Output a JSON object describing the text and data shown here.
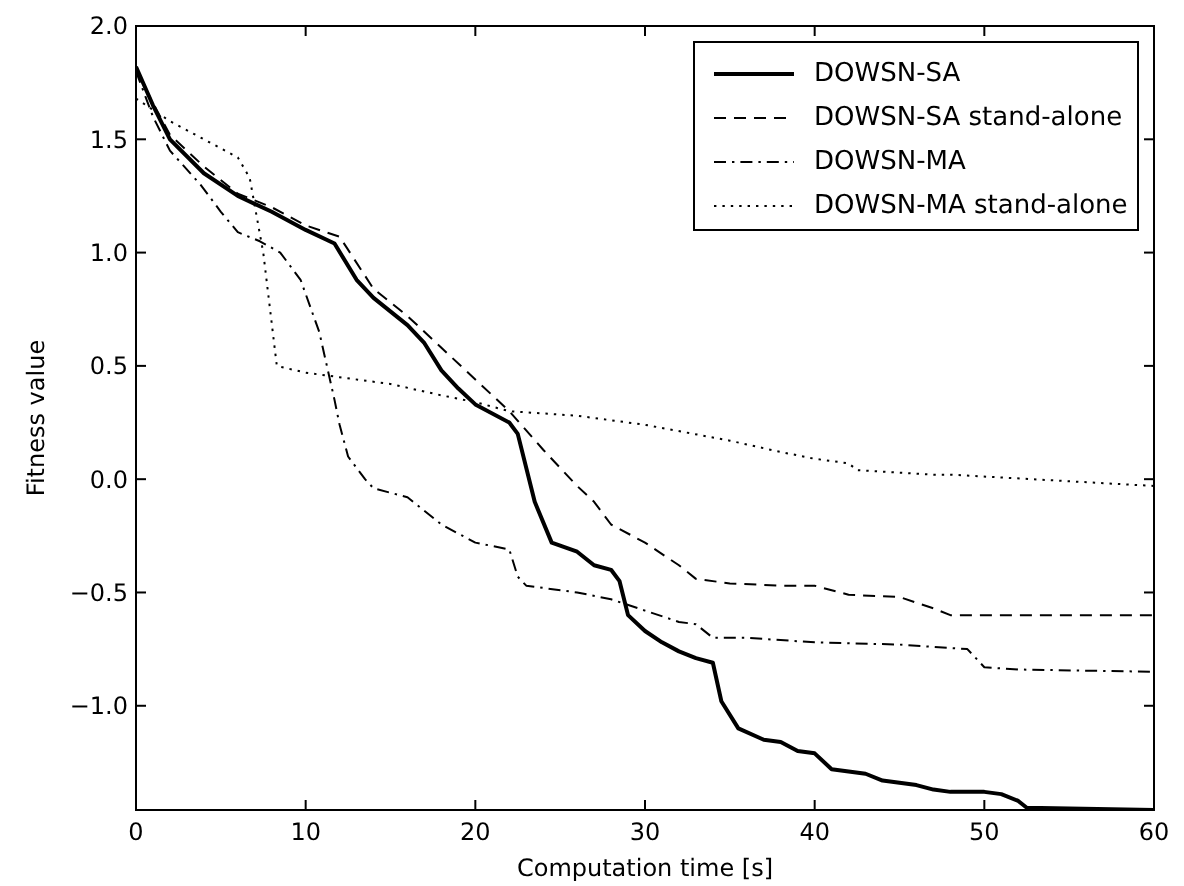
{
  "chart_data": {
    "type": "line",
    "xlabel": "Computation time [s]",
    "ylabel": "Fitness value",
    "xlim": [
      0,
      60
    ],
    "ylim": [
      -1.46,
      2.0
    ],
    "xticks": [
      0,
      10,
      20,
      30,
      40,
      50,
      60
    ],
    "yticks": [
      {
        "value": 2,
        "label": "2.0"
      },
      {
        "value": 1.5,
        "label": "1.5"
      },
      {
        "value": 1,
        "label": "1.0"
      },
      {
        "value": 0.5,
        "label": "0.5"
      },
      {
        "value": 0,
        "label": "0.0"
      },
      {
        "value": -0.5,
        "label": "−0.5"
      },
      {
        "value": -1,
        "label": "−1.0"
      }
    ],
    "grid": false,
    "legend": "top right",
    "series": [
      {
        "name": "DOWSN-SA",
        "color": "#000000",
        "line_style": "solid",
        "x": [
          0,
          1,
          2,
          4,
          6,
          8,
          10,
          11.7,
          13,
          14,
          16,
          17,
          18,
          19,
          20,
          22,
          22.5,
          23.5,
          24.5,
          26,
          27,
          28,
          28.5,
          29,
          30,
          31,
          32,
          33,
          34,
          34.5,
          35.5,
          37,
          38,
          39,
          40,
          41,
          42,
          43,
          44,
          45,
          46,
          47,
          48,
          50,
          51,
          52,
          52.5,
          60
        ],
        "values": [
          1.82,
          1.65,
          1.5,
          1.35,
          1.25,
          1.18,
          1.1,
          1.04,
          0.88,
          0.8,
          0.68,
          0.6,
          0.48,
          0.4,
          0.33,
          0.25,
          0.2,
          -0.1,
          -0.28,
          -0.32,
          -0.38,
          -0.4,
          -0.45,
          -0.6,
          -0.67,
          -0.72,
          -0.76,
          -0.79,
          -0.81,
          -0.98,
          -1.1,
          -1.15,
          -1.16,
          -1.2,
          -1.21,
          -1.28,
          -1.29,
          -1.3,
          -1.33,
          -1.34,
          -1.35,
          -1.37,
          -1.38,
          -1.38,
          -1.39,
          -1.42,
          -1.45,
          -1.46
        ]
      },
      {
        "name": "DOWSN-SA stand-alone",
        "color": "#000000",
        "line_style": "dashed",
        "x": [
          0,
          2,
          4,
          6,
          8,
          10,
          12,
          14,
          16,
          18,
          20,
          22,
          24,
          26,
          27,
          28,
          30,
          32,
          33,
          35,
          38,
          40,
          42,
          45,
          47,
          48,
          60
        ],
        "values": [
          1.8,
          1.52,
          1.38,
          1.26,
          1.2,
          1.12,
          1.07,
          0.84,
          0.72,
          0.58,
          0.44,
          0.3,
          0.13,
          -0.03,
          -0.1,
          -0.2,
          -0.28,
          -0.38,
          -0.44,
          -0.46,
          -0.47,
          -0.47,
          -0.51,
          -0.52,
          -0.57,
          -0.6,
          -0.6
        ]
      },
      {
        "name": "DOWSN-MA",
        "color": "#000000",
        "line_style": "dashdot",
        "x": [
          0,
          1,
          2,
          3.8,
          5,
          6,
          7.3,
          8.5,
          9.7,
          10.8,
          11.7,
          12,
          12.5,
          13.5,
          14,
          16,
          18,
          20,
          22,
          22.5,
          23,
          26,
          28,
          30,
          32,
          33,
          34,
          36,
          40,
          45,
          49,
          50,
          52,
          60
        ],
        "values": [
          1.8,
          1.6,
          1.45,
          1.3,
          1.18,
          1.09,
          1.05,
          1.0,
          0.88,
          0.65,
          0.35,
          0.24,
          0.1,
          0.0,
          -0.04,
          -0.08,
          -0.2,
          -0.28,
          -0.31,
          -0.43,
          -0.47,
          -0.5,
          -0.53,
          -0.58,
          -0.63,
          -0.64,
          -0.7,
          -0.7,
          -0.72,
          -0.73,
          -0.75,
          -0.83,
          -0.84,
          -0.85
        ]
      },
      {
        "name": "DOWSN-MA stand-alone",
        "color": "#000000",
        "line_style": "dotted",
        "x": [
          0,
          1,
          2,
          4,
          6,
          6.7,
          7.5,
          8.3,
          10,
          12,
          15,
          18,
          20,
          22,
          26,
          30,
          35,
          38,
          40,
          42,
          42.5,
          47,
          48,
          60
        ],
        "values": [
          1.68,
          1.63,
          1.58,
          1.5,
          1.42,
          1.33,
          1.0,
          0.5,
          0.47,
          0.45,
          0.42,
          0.37,
          0.34,
          0.3,
          0.28,
          0.24,
          0.17,
          0.12,
          0.09,
          0.07,
          0.04,
          0.02,
          0.02,
          -0.03
        ]
      }
    ]
  }
}
